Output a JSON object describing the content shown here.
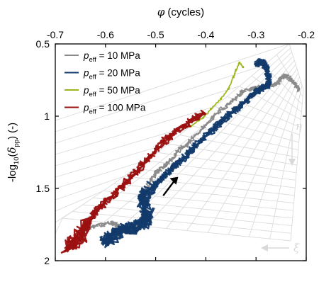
{
  "chart_data": {
    "type": "line",
    "xlabel": "(cycles)",
    "xlabel_symbol": "φ",
    "ylabel_prefix": "-log",
    "ylabel_sub": "10",
    "ylabel_paren_open": "(",
    "ylabel_symbol": "δ",
    "ylabel_symbol_sub": "pp",
    "ylabel_paren_close": ")",
    "ylabel_suffix": "(-)",
    "x_axis_position": "top",
    "xlim": [
      -0.7,
      -0.2
    ],
    "ylim": [
      2,
      0.5
    ],
    "y_inverted": true,
    "xticks": [
      -0.7,
      -0.6,
      -0.5,
      -0.4,
      -0.3,
      -0.2
    ],
    "xtick_labels": [
      "-0.7",
      "-0.6",
      "-0.5",
      "-0.4",
      "-0.3",
      "-0.2"
    ],
    "yticks": [
      0.5,
      1,
      1.5,
      2
    ],
    "ytick_labels": [
      "0.5",
      "1",
      "1.5",
      "2"
    ],
    "grid": false,
    "legend": {
      "position": "top-left",
      "entries": [
        {
          "prefix": "p",
          "sub": "eff",
          "suffix": " = 10 MPa",
          "color": "#8a8a8a"
        },
        {
          "prefix": "p",
          "sub": "eff",
          "suffix": " = 20 MPa",
          "color": "#123a6b"
        },
        {
          "prefix": "p",
          "sub": "eff",
          "suffix": " = 50 MPa",
          "color": "#9bb51a"
        },
        {
          "prefix": "p",
          "sub": "eff",
          "suffix": " = 100 MPa",
          "color": "#9b1010"
        }
      ]
    },
    "background_mesh": {
      "color": "#dcdcdc",
      "eta_label": "η",
      "xi_label": "ξ",
      "eta_arrow_direction": "down",
      "xi_arrow_direction": "left"
    },
    "annotation_arrow": {
      "from": [
        -0.485,
        1.55
      ],
      "to": [
        -0.455,
        1.42
      ],
      "color": "#000000"
    },
    "series": [
      {
        "name": "p_eff = 10 MPa",
        "color": "#8a8a8a",
        "x": [
          -0.655,
          -0.645,
          -0.625,
          -0.6,
          -0.585,
          -0.575,
          -0.565,
          -0.555,
          -0.55,
          -0.545,
          -0.535,
          -0.525,
          -0.52,
          -0.525,
          -0.52,
          -0.51,
          -0.495,
          -0.48,
          -0.47,
          -0.455,
          -0.44,
          -0.43,
          -0.405,
          -0.385,
          -0.36,
          -0.34,
          -0.325,
          -0.31,
          -0.295,
          -0.28,
          -0.262,
          -0.25,
          -0.242,
          -0.232,
          -0.222,
          -0.216
        ],
        "y": [
          1.81,
          1.79,
          1.765,
          1.745,
          1.74,
          1.755,
          1.79,
          1.805,
          1.8,
          1.78,
          1.76,
          1.7,
          1.62,
          1.56,
          1.5,
          1.44,
          1.38,
          1.34,
          1.3,
          1.24,
          1.2,
          1.17,
          1.08,
          1.0,
          0.93,
          0.87,
          0.83,
          0.81,
          0.8,
          0.8,
          0.78,
          0.74,
          0.72,
          0.74,
          0.78,
          0.82
        ]
      },
      {
        "name": "p_eff = 20 MPa",
        "color": "#123a6b",
        "x": [
          -0.6,
          -0.59,
          -0.575,
          -0.56,
          -0.54,
          -0.52,
          -0.515,
          -0.525,
          -0.52,
          -0.5,
          -0.48,
          -0.465,
          -0.45,
          -0.43,
          -0.41,
          -0.385,
          -0.36,
          -0.335,
          -0.31,
          -0.3,
          -0.285,
          -0.275,
          -0.275,
          -0.28,
          -0.29,
          -0.3
        ],
        "y": [
          1.87,
          1.84,
          1.81,
          1.78,
          1.77,
          1.73,
          1.68,
          1.6,
          1.54,
          1.47,
          1.4,
          1.35,
          1.31,
          1.24,
          1.17,
          1.09,
          1.01,
          0.94,
          0.86,
          0.83,
          0.8,
          0.78,
          0.72,
          0.66,
          0.62,
          0.64
        ]
      },
      {
        "name": "p_eff = 50 MPa",
        "color": "#9bb51a",
        "x": [
          -0.43,
          -0.415,
          -0.405,
          -0.39,
          -0.37,
          -0.355,
          -0.345,
          -0.34,
          -0.333,
          -0.326
        ],
        "y": [
          1.07,
          1.03,
          1.01,
          0.95,
          0.88,
          0.81,
          0.73,
          0.68,
          0.63,
          0.66
        ]
      },
      {
        "name": "p_eff = 100 MPa",
        "color": "#9b1010",
        "x": [
          -0.675,
          -0.665,
          -0.655,
          -0.645,
          -0.635,
          -0.625,
          -0.62,
          -0.605,
          -0.585,
          -0.565,
          -0.545,
          -0.525,
          -0.505,
          -0.485,
          -0.465,
          -0.445,
          -0.425,
          -0.405
        ],
        "y": [
          1.9,
          1.87,
          1.84,
          1.8,
          1.74,
          1.69,
          1.66,
          1.61,
          1.55,
          1.48,
          1.41,
          1.33,
          1.25,
          1.18,
          1.12,
          1.07,
          1.02,
          0.98
        ]
      }
    ]
  }
}
